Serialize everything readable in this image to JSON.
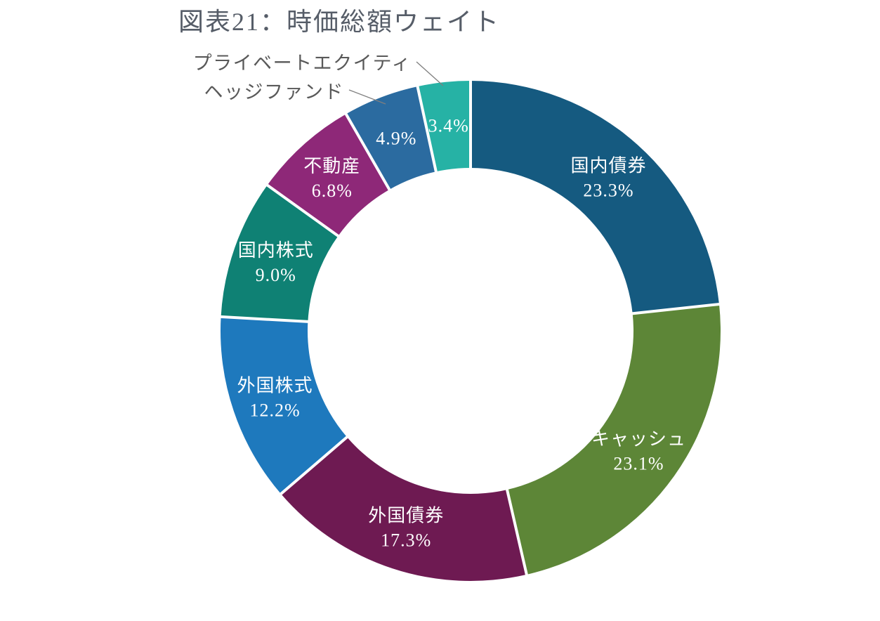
{
  "title": "図表21：時価総額ウェイト",
  "chart_data": {
    "type": "pie",
    "subtype": "donut",
    "title": "図表21：時価総額ウェイト",
    "unit": "%",
    "start_angle_deg": 0,
    "direction": "clockwise",
    "legend": "none",
    "donut_hole_ratio": 0.65,
    "label_text_color": "#ffffff",
    "callout_text_color": "#595959",
    "callout_line_color": "#7f7f7f",
    "title_color": "#565d68",
    "slices": [
      {
        "key": "domestic-bonds",
        "label": "国内債券",
        "value": 23.3,
        "color": "#155a80",
        "label_placement": "inside"
      },
      {
        "key": "cash",
        "label": "キャッシュ",
        "value": 23.1,
        "color": "#5d8637",
        "label_placement": "inside"
      },
      {
        "key": "foreign-bonds",
        "label": "外国債券",
        "value": 17.3,
        "color": "#6e1a52",
        "label_placement": "inside"
      },
      {
        "key": "foreign-equity",
        "label": "外国株式",
        "value": 12.2,
        "color": "#1e79bd",
        "label_placement": "inside"
      },
      {
        "key": "domestic-equity",
        "label": "国内株式",
        "value": 9.0,
        "color": "#0f8174",
        "label_placement": "inside"
      },
      {
        "key": "real-estate",
        "label": "不動産",
        "value": 6.8,
        "color": "#8e2878",
        "label_placement": "inside"
      },
      {
        "key": "hedge-fund",
        "label": "ヘッジファンド",
        "value": 4.9,
        "color": "#2b6ba0",
        "label_placement": "callout"
      },
      {
        "key": "private-equity",
        "label": "プライベートエクイティ",
        "value": 3.4,
        "color": "#26b2a5",
        "label_placement": "callout"
      }
    ]
  }
}
